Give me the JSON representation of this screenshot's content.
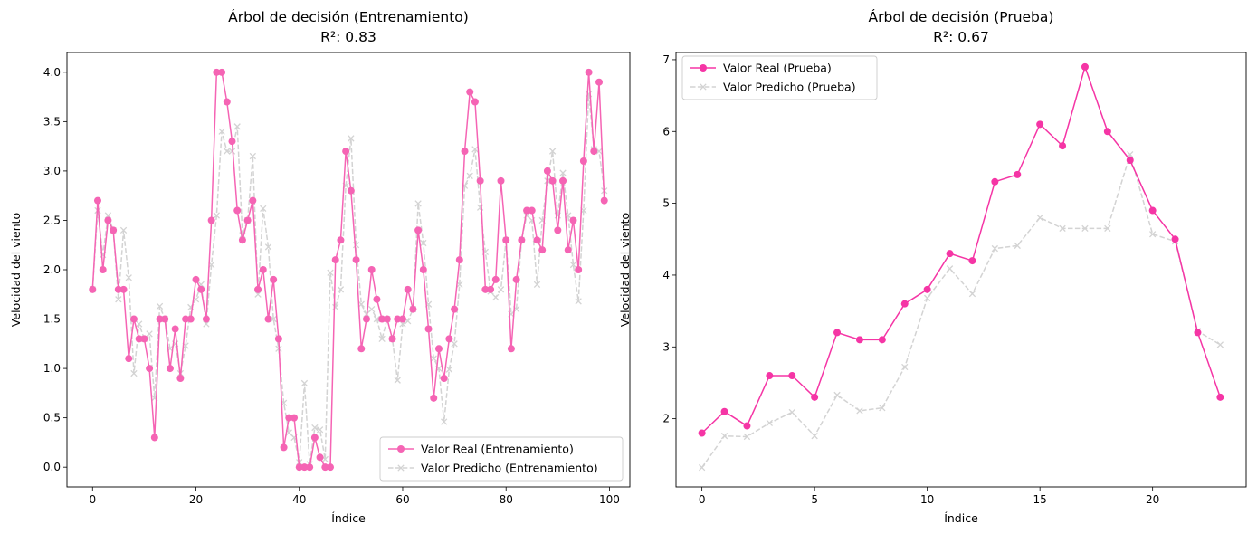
{
  "chart_data": [
    {
      "type": "line",
      "title": "Árbol de decisión (Entrenamiento)",
      "subtitle": "R²: 0.83",
      "xlabel": "Índice",
      "ylabel": "Velocidad del viento",
      "xlim": [
        -4.95,
        103.95
      ],
      "ylim": [
        -0.2,
        4.2
      ],
      "xticks": [
        0,
        20,
        40,
        60,
        80,
        100
      ],
      "yticks": [
        0.0,
        0.5,
        1.0,
        1.5,
        2.0,
        2.5,
        3.0,
        3.5,
        4.0
      ],
      "yticklabels": [
        "0.0",
        "0.5",
        "1.0",
        "1.5",
        "2.0",
        "2.5",
        "3.0",
        "3.5",
        "4.0"
      ],
      "legend_position": "lower right",
      "x": [
        0,
        1,
        2,
        3,
        4,
        5,
        6,
        7,
        8,
        9,
        10,
        11,
        12,
        13,
        14,
        15,
        16,
        17,
        18,
        19,
        20,
        21,
        22,
        23,
        24,
        25,
        26,
        27,
        28,
        29,
        30,
        31,
        32,
        33,
        34,
        35,
        36,
        37,
        38,
        39,
        40,
        41,
        42,
        43,
        44,
        45,
        46,
        47,
        48,
        49,
        50,
        51,
        52,
        53,
        54,
        55,
        56,
        57,
        58,
        59,
        60,
        61,
        62,
        63,
        64,
        65,
        66,
        67,
        68,
        69,
        70,
        71,
        72,
        73,
        74,
        75,
        76,
        77,
        78,
        79,
        80,
        81,
        82,
        83,
        84,
        85,
        86,
        87,
        88,
        89,
        90,
        91,
        92,
        93,
        94,
        95,
        96,
        97,
        98,
        99
      ],
      "series": [
        {
          "name": "Valor Real (Entrenamiento)",
          "color": "#f564b4",
          "style": "solid",
          "marker": "circle",
          "values": [
            1.8,
            2.7,
            2.0,
            2.5,
            2.4,
            1.8,
            1.8,
            1.1,
            1.5,
            1.3,
            1.3,
            1.0,
            0.3,
            1.5,
            1.5,
            1.0,
            1.4,
            0.9,
            1.5,
            1.5,
            1.9,
            1.8,
            1.5,
            2.5,
            4.0,
            4.0,
            3.7,
            3.3,
            2.6,
            2.3,
            2.5,
            2.7,
            1.8,
            2.0,
            1.5,
            1.9,
            1.3,
            0.2,
            0.5,
            0.5,
            0.0,
            0.0,
            0.0,
            0.3,
            0.1,
            0.0,
            0.0,
            2.1,
            2.3,
            3.2,
            2.8,
            2.1,
            1.2,
            1.5,
            2.0,
            1.7,
            1.5,
            1.5,
            1.3,
            1.5,
            1.5,
            1.8,
            1.6,
            2.4,
            2.0,
            1.4,
            0.7,
            1.2,
            0.9,
            1.3,
            1.6,
            2.1,
            3.2,
            3.8,
            3.7,
            2.9,
            1.8,
            1.8,
            1.9,
            2.9,
            2.3,
            1.2,
            1.9,
            2.3,
            2.6,
            2.6,
            2.3,
            2.2,
            3.0,
            2.9,
            2.4,
            2.9,
            2.2,
            2.5,
            2.0,
            3.1,
            4.0,
            3.2,
            3.9,
            2.7
          ]
        },
        {
          "name": "Valor Predicho (Entrenamiento)",
          "color": "#d3d3d3",
          "style": "dashed",
          "marker": "x",
          "values": [
            1.8,
            2.6,
            2.15,
            2.55,
            2.4,
            1.7,
            2.4,
            1.92,
            0.95,
            1.45,
            1.3,
            1.35,
            0.7,
            1.63,
            1.5,
            1.2,
            1.25,
            0.95,
            1.23,
            1.62,
            1.7,
            1.85,
            1.45,
            2.05,
            2.55,
            3.4,
            3.2,
            3.2,
            3.45,
            2.35,
            2.5,
            3.15,
            1.75,
            2.62,
            2.23,
            1.5,
            1.2,
            0.65,
            0.35,
            0.3,
            0.05,
            0.85,
            0.03,
            0.4,
            0.38,
            0.08,
            1.97,
            1.62,
            1.8,
            2.85,
            3.33,
            2.25,
            1.65,
            1.55,
            1.6,
            1.5,
            1.3,
            1.5,
            1.3,
            0.88,
            1.45,
            1.48,
            1.6,
            2.67,
            2.27,
            1.65,
            1.1,
            1.0,
            0.46,
            0.99,
            1.25,
            1.85,
            2.85,
            2.95,
            3.22,
            2.63,
            2.18,
            1.78,
            1.72,
            1.8,
            2.3,
            1.55,
            1.6,
            2.3,
            2.55,
            2.5,
            1.85,
            2.5,
            2.9,
            3.2,
            2.55,
            2.98,
            2.55,
            2.05,
            1.68,
            2.6,
            3.78,
            3.22,
            3.2,
            2.8
          ]
        }
      ]
    },
    {
      "type": "line",
      "title": "Árbol de decisión (Prueba)",
      "subtitle": "R²: 0.67",
      "xlabel": "Índice",
      "ylabel": "Velocidad del viento",
      "xlim": [
        -1.15,
        24.15
      ],
      "ylim": [
        1.05,
        7.1
      ],
      "xticks": [
        0,
        5,
        10,
        15,
        20
      ],
      "yticks": [
        2,
        3,
        4,
        5,
        6,
        7
      ],
      "yticklabels": [
        "2",
        "3",
        "4",
        "5",
        "6",
        "7"
      ],
      "legend_position": "upper left",
      "x": [
        0,
        1,
        2,
        3,
        4,
        5,
        6,
        7,
        8,
        9,
        10,
        11,
        12,
        13,
        14,
        15,
        16,
        17,
        18,
        19,
        20,
        21,
        22,
        23
      ],
      "series": [
        {
          "name": "Valor Real (Prueba)",
          "color": "#f535a5",
          "style": "solid",
          "marker": "circle",
          "values": [
            1.8,
            2.1,
            1.9,
            2.6,
            2.6,
            2.3,
            3.2,
            3.1,
            3.1,
            3.6,
            3.8,
            4.3,
            4.2,
            5.3,
            5.4,
            6.1,
            5.8,
            6.9,
            6.0,
            5.6,
            4.9,
            4.5,
            3.2,
            2.3
          ]
        },
        {
          "name": "Valor Predicho (Prueba)",
          "color": "#d3d3d3",
          "style": "dashed",
          "marker": "x",
          "values": [
            1.32,
            1.76,
            1.75,
            1.94,
            2.09,
            1.76,
            2.33,
            2.11,
            2.15,
            2.72,
            3.68,
            4.09,
            3.74,
            4.37,
            4.41,
            4.8,
            4.65,
            4.65,
            4.65,
            5.68,
            4.57,
            4.47,
            3.22,
            3.03
          ]
        }
      ]
    }
  ]
}
